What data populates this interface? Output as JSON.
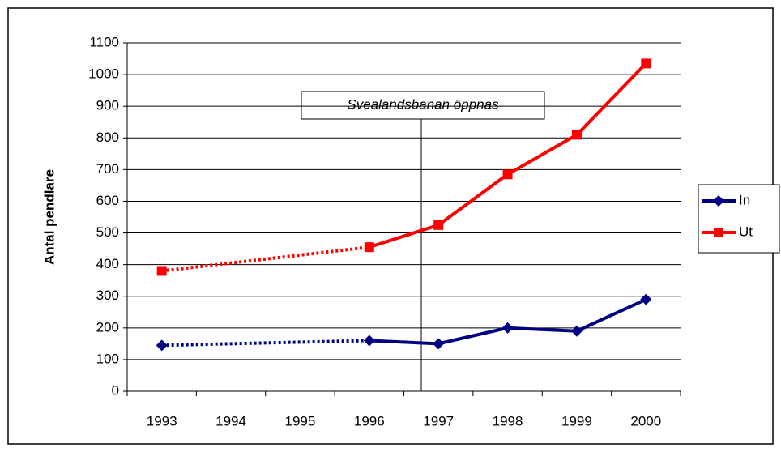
{
  "chart_data": {
    "type": "line",
    "y_label": "Antal pendlare",
    "annotation": "Svealandsbanan öppnas",
    "categories": [
      "1993",
      "1994",
      "1995",
      "1996",
      "1997",
      "1998",
      "1999",
      "2000"
    ],
    "series": [
      {
        "name": "In",
        "color": "#000080",
        "marker": "diamond",
        "values": [
          145,
          null,
          null,
          160,
          150,
          200,
          190,
          290
        ]
      },
      {
        "name": "Ut",
        "color": "#ff0000",
        "marker": "square",
        "values": [
          380,
          null,
          null,
          455,
          525,
          685,
          810,
          1035
        ]
      }
    ],
    "ylim": [
      0,
      1100
    ],
    "yticks": [
      0,
      100,
      200,
      300,
      400,
      500,
      600,
      700,
      800,
      900,
      1000,
      1100
    ],
    "grid": true,
    "legend": "right"
  }
}
